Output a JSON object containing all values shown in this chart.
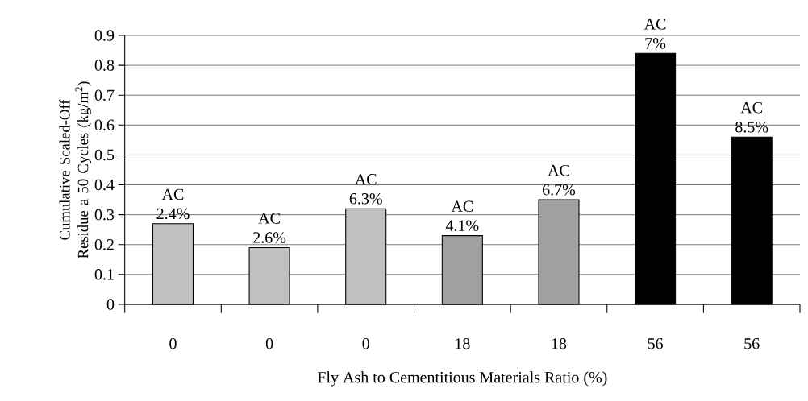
{
  "chart_data": {
    "type": "bar",
    "xlabel": "Fly Ash to Cementitious Materials Ratio (%)",
    "ylabel": "Cumulative Scaled-Off Residue a 50 Cycles (kg/m$^{2}$)",
    "categories": [
      "0",
      "0",
      "0",
      "18",
      "18",
      "56",
      "56"
    ],
    "values": [
      0.27,
      0.19,
      0.32,
      0.23,
      0.35,
      0.84,
      0.56
    ],
    "colors": [
      "#c0c0c0",
      "#c0c0c0",
      "#c0c0c0",
      "#a0a0a0",
      "#a0a0a0",
      "#000000",
      "#000000"
    ],
    "ylim": [
      0,
      0.9
    ],
    "yticks": [
      0,
      0.1,
      0.2,
      0.3,
      0.4,
      0.5,
      0.6,
      0.7,
      0.8,
      0.9
    ],
    "grid": "y",
    "annotations": [
      "AC 2.4%",
      "AC 2.6%",
      "AC 6.3%",
      "AC 4.1%",
      "AC 6.7%",
      "AC 7%",
      "AC 8.5%"
    ]
  }
}
